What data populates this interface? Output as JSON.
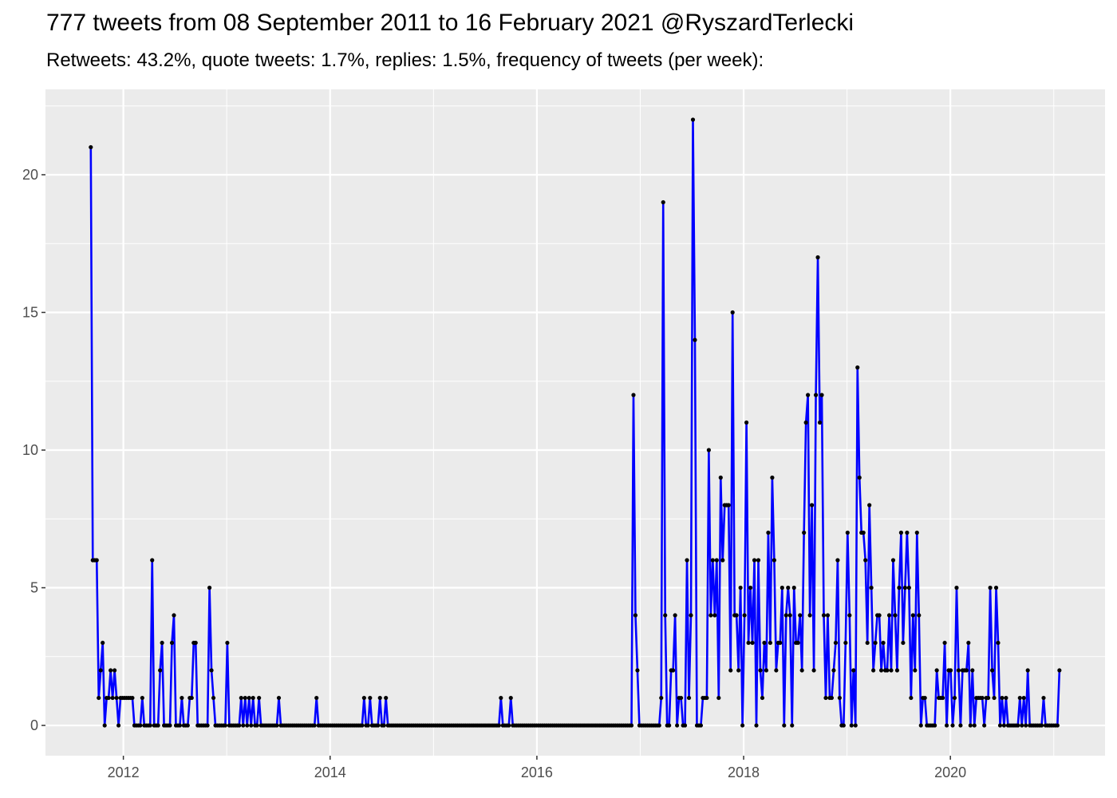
{
  "chart_data": {
    "type": "line",
    "title": "777 tweets from 08 September 2011 to 16 February 2021 @RyszardTerlecki",
    "subtitle": "Retweets: 43.2%, quote tweets: 1.7%, replies: 1.5%, frequency of tweets (per week):",
    "xlabel": "",
    "ylabel": "",
    "x_start": "2011-09-08",
    "x_frequency": "weekly",
    "x_ticks": [
      "2012",
      "2014",
      "2016",
      "2018",
      "2020"
    ],
    "y_ticks": [
      0,
      5,
      10,
      15,
      20
    ],
    "xlim": [
      "2011-04-01",
      "2021-07-01"
    ],
    "ylim": [
      -1.1,
      23.1
    ],
    "grid": true,
    "colors": {
      "line": "#0000FF",
      "points": "#000000",
      "panel": "#EBEBEB",
      "grid": "#FFFFFF"
    },
    "values": [
      21,
      6,
      6,
      6,
      1,
      2,
      3,
      0,
      1,
      1,
      2,
      1,
      2,
      1,
      0,
      1,
      1,
      1,
      1,
      1,
      1,
      1,
      0,
      0,
      0,
      0,
      1,
      0,
      0,
      0,
      0,
      6,
      0,
      0,
      0,
      2,
      3,
      0,
      0,
      0,
      0,
      3,
      4,
      0,
      0,
      0,
      1,
      0,
      0,
      0,
      1,
      1,
      3,
      3,
      0,
      0,
      0,
      0,
      0,
      0,
      5,
      2,
      1,
      0,
      0,
      0,
      0,
      0,
      0,
      3,
      0,
      0,
      0,
      0,
      0,
      0,
      1,
      0,
      1,
      0,
      1,
      0,
      1,
      0,
      0,
      1,
      0,
      0,
      0,
      0,
      0,
      0,
      0,
      0,
      0,
      1,
      0,
      0,
      0,
      0,
      0,
      0,
      0,
      0,
      0,
      0,
      0,
      0,
      0,
      0,
      0,
      0,
      0,
      0,
      1,
      0,
      0,
      0,
      0,
      0,
      0,
      0,
      0,
      0,
      0,
      0,
      0,
      0,
      0,
      0,
      0,
      0,
      0,
      0,
      0,
      0,
      0,
      0,
      1,
      0,
      0,
      1,
      0,
      0,
      0,
      0,
      1,
      0,
      0,
      1,
      0,
      0,
      0,
      0,
      0,
      0,
      0,
      0,
      0,
      0,
      0,
      0,
      0,
      0,
      0,
      0,
      0,
      0,
      0,
      0,
      0,
      0,
      0,
      0,
      0,
      0,
      0,
      0,
      0,
      0,
      0,
      0,
      0,
      0,
      0,
      0,
      0,
      0,
      0,
      0,
      0,
      0,
      0,
      0,
      0,
      0,
      0,
      0,
      0,
      0,
      0,
      0,
      0,
      0,
      0,
      0,
      0,
      1,
      0,
      0,
      0,
      0,
      1,
      0,
      0,
      0,
      0,
      0,
      0,
      0,
      0,
      0,
      0,
      0,
      0,
      0,
      0,
      0,
      0,
      0,
      0,
      0,
      0,
      0,
      0,
      0,
      0,
      0,
      0,
      0,
      0,
      0,
      0,
      0,
      0,
      0,
      0,
      0,
      0,
      0,
      0,
      0,
      0,
      0,
      0,
      0,
      0,
      0,
      0,
      0,
      0,
      0,
      0,
      0,
      0,
      0,
      0,
      0,
      0,
      0,
      0,
      0,
      0,
      0,
      12,
      4,
      2,
      0,
      0,
      0,
      0,
      0,
      0,
      0,
      0,
      0,
      0,
      0,
      1,
      19,
      4,
      0,
      0,
      2,
      2,
      4,
      0,
      1,
      1,
      0,
      0,
      6,
      1,
      4,
      22,
      14,
      0,
      0,
      0,
      1,
      1,
      1,
      10,
      4,
      6,
      4,
      6,
      1,
      9,
      6,
      8,
      8,
      8,
      2,
      15,
      4,
      4,
      2,
      5,
      0,
      4,
      11,
      3,
      5,
      3,
      6,
      0,
      6,
      2,
      1,
      3,
      2,
      7,
      3,
      9,
      6,
      2,
      3,
      3,
      5,
      0,
      4,
      5,
      4,
      0,
      5,
      3,
      3,
      4,
      2,
      7,
      11,
      12,
      4,
      8,
      2,
      12,
      17,
      11,
      12,
      4,
      1,
      4,
      1,
      1,
      2,
      3,
      6,
      1,
      0,
      0,
      3,
      7,
      4,
      0,
      2,
      0,
      13,
      9,
      7,
      7,
      6,
      3,
      8,
      5,
      2,
      3,
      4,
      4,
      2,
      3,
      2,
      2,
      4,
      2,
      6,
      4,
      2,
      5,
      7,
      3,
      5,
      7,
      5,
      1,
      4,
      2,
      7,
      4,
      0,
      1,
      1,
      0,
      0,
      0,
      0,
      0,
      2,
      1,
      1,
      1,
      3,
      0,
      2,
      2,
      0,
      1,
      5,
      2,
      0,
      2,
      2,
      2,
      3,
      0,
      2,
      0,
      1,
      1,
      1,
      1,
      0,
      1,
      1,
      5,
      2,
      1,
      5,
      3,
      0,
      1,
      0,
      1,
      0,
      0,
      0,
      0,
      0,
      0,
      1,
      0,
      1,
      0,
      2,
      0,
      0,
      0,
      0,
      0,
      0,
      0,
      1,
      0,
      0,
      0,
      0,
      0,
      0,
      0,
      2
    ]
  }
}
